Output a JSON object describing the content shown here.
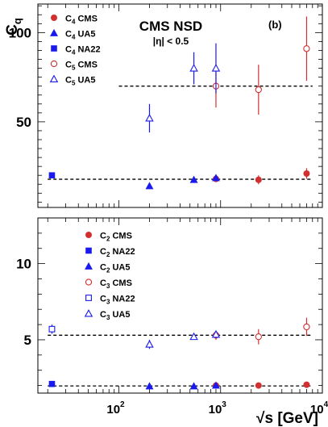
{
  "chart_data": [
    {
      "type": "scatter",
      "panel_label": "(b)",
      "title": "CMS NSD",
      "subtitle": "|η| < 0.5",
      "ylabel": "C",
      "ylabel_sub": "q",
      "xscale": "log",
      "xlim": [
        16,
        10000
      ],
      "ylim": [
        2,
        116
      ],
      "yticks": [
        50,
        100
      ],
      "legend_position": "top-left",
      "series": [
        {
          "name": "C4 CMS",
          "label": "C",
          "sub": "4",
          "suffix": " CMS",
          "marker": "circle-filled",
          "color": "#d32f2f",
          "points": [
            {
              "x": 900,
              "y": 18,
              "e": 1.5
            },
            {
              "x": 2360,
              "y": 17.5,
              "e": 2.5
            },
            {
              "x": 7000,
              "y": 21,
              "e": 3
            }
          ]
        },
        {
          "name": "C4 UA5",
          "label": "C",
          "sub": "4",
          "suffix": " UA5",
          "marker": "triangle-filled",
          "color": "#1a1aee",
          "points": [
            {
              "x": 200,
              "y": 14,
              "e": 0
            },
            {
              "x": 546,
              "y": 17.5,
              "e": 0
            },
            {
              "x": 900,
              "y": 18.5,
              "e": 0
            }
          ]
        },
        {
          "name": "C4 NA22",
          "label": "C",
          "sub": "4",
          "suffix": " NA22",
          "marker": "square-filled",
          "color": "#1a1aee",
          "points": [
            {
              "x": 22,
              "y": 20,
              "e": 1.5
            }
          ]
        },
        {
          "name": "C5 CMS",
          "label": "C",
          "sub": "5",
          "suffix": " CMS",
          "marker": "circle-open",
          "color": "#d32f2f",
          "points": [
            {
              "x": 900,
              "y": 70,
              "e": 12
            },
            {
              "x": 2360,
              "y": 68,
              "e": 14
            },
            {
              "x": 7000,
              "y": 91,
              "e": 18
            }
          ]
        },
        {
          "name": "C5 UA5",
          "label": "C",
          "sub": "5",
          "suffix": " UA5",
          "marker": "triangle-open",
          "color": "#1a1aee",
          "points": [
            {
              "x": 200,
              "y": 52,
              "e": 8
            },
            {
              "x": 546,
              "y": 80,
              "e": 9
            },
            {
              "x": 900,
              "y": 80,
              "e": 14
            }
          ]
        }
      ],
      "reference_lines": [
        {
          "y": 17.8,
          "x_from": 20,
          "x_to": 8000
        },
        {
          "y": 70,
          "x_from": 100,
          "x_to": 8000
        }
      ]
    },
    {
      "type": "scatter",
      "xlabel": "√s   [GeV]",
      "xscale": "log",
      "xlim": [
        16,
        10000
      ],
      "xticks": [
        100,
        1000,
        10000
      ],
      "xticklabels": [
        "10",
        "10",
        "10"
      ],
      "xtick_exponents": [
        "2",
        "3",
        "4"
      ],
      "ylim": [
        1.5,
        13
      ],
      "yticks": [
        5,
        10
      ],
      "legend_position": "top-center",
      "series": [
        {
          "name": "C2 CMS",
          "label": "C",
          "sub": "2",
          "suffix": " CMS",
          "marker": "circle-filled",
          "color": "#d32f2f",
          "points": [
            {
              "x": 900,
              "y": 2.0,
              "e": 0.05
            },
            {
              "x": 2360,
              "y": 2.0,
              "e": 0.05
            },
            {
              "x": 7000,
              "y": 2.05,
              "e": 0.08
            }
          ]
        },
        {
          "name": "C2 NA22",
          "label": "C",
          "sub": "2",
          "suffix": " NA22",
          "marker": "square-filled",
          "color": "#1a1aee",
          "points": [
            {
              "x": 22,
              "y": 2.1,
              "e": 0.05
            }
          ]
        },
        {
          "name": "C2 UA5",
          "label": "C",
          "sub": "2",
          "suffix": " UA5",
          "marker": "triangle-filled",
          "color": "#1a1aee",
          "points": [
            {
              "x": 200,
              "y": 1.95,
              "e": 0
            },
            {
              "x": 546,
              "y": 1.95,
              "e": 0
            },
            {
              "x": 900,
              "y": 2.0,
              "e": 0
            }
          ]
        },
        {
          "name": "C3 CMS",
          "label": "C",
          "sub": "3",
          "suffix": " CMS",
          "marker": "circle-open",
          "color": "#d32f2f",
          "points": [
            {
              "x": 900,
              "y": 5.3,
              "e": 0.3
            },
            {
              "x": 2360,
              "y": 5.2,
              "e": 0.5
            },
            {
              "x": 7000,
              "y": 5.85,
              "e": 0.6
            }
          ]
        },
        {
          "name": "C3 NA22",
          "label": "C",
          "sub": "3",
          "suffix": " NA22",
          "marker": "square-open",
          "color": "#1a1aee",
          "points": [
            {
              "x": 22,
              "y": 5.7,
              "e": 0.3
            }
          ]
        },
        {
          "name": "C3 UA5",
          "label": "C",
          "sub": "3",
          "suffix": " UA5",
          "marker": "triangle-open",
          "color": "#1a1aee",
          "points": [
            {
              "x": 200,
              "y": 4.7,
              "e": 0.3
            },
            {
              "x": 546,
              "y": 5.2,
              "e": 0.1
            },
            {
              "x": 900,
              "y": 5.35,
              "e": 0.25
            }
          ]
        }
      ],
      "reference_lines": [
        {
          "y": 1.97,
          "x_from": 20,
          "x_to": 8000
        },
        {
          "y": 5.3,
          "x_from": 20,
          "x_to": 8000
        }
      ]
    }
  ]
}
